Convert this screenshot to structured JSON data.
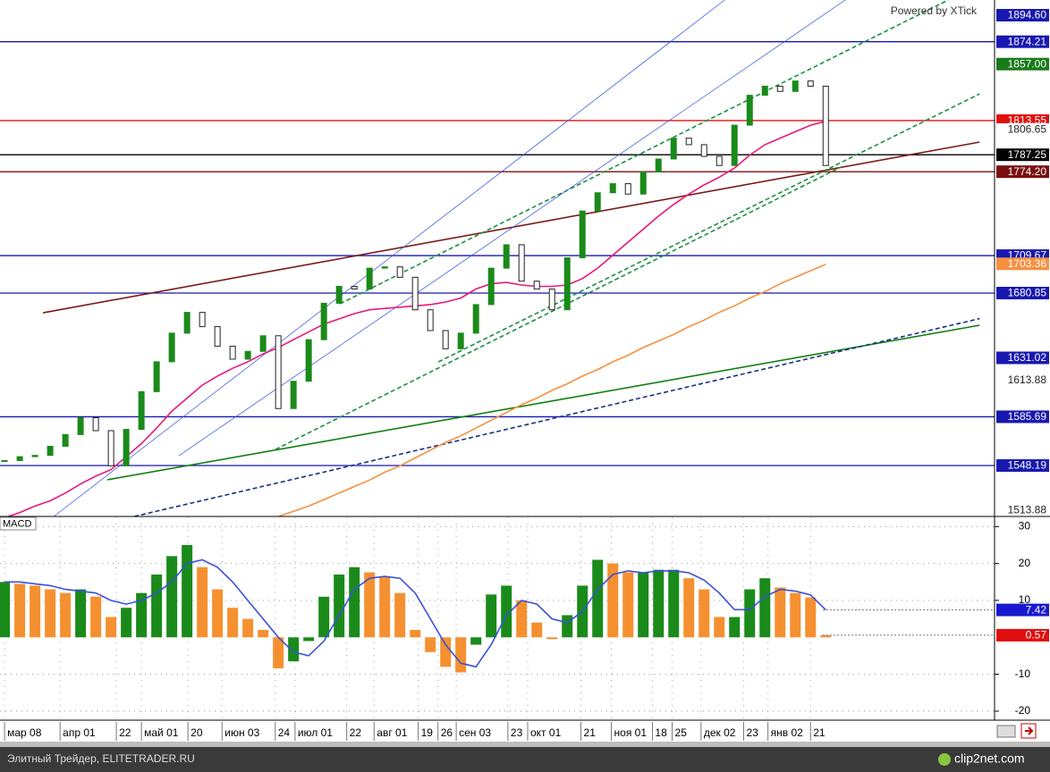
{
  "chart_data": [
    {
      "type": "candlestick",
      "watermark": "Powered by XTick",
      "xlim": [
        -0.3,
        65.1
      ],
      "ylim": [
        1509,
        1906.3
      ],
      "xticks": [
        {
          "value": 0,
          "label": "мар 08"
        },
        {
          "value": 3.65,
          "label": "апр 01"
        },
        {
          "value": 7.35,
          "label": "22"
        },
        {
          "value": 9,
          "label": "май 01"
        },
        {
          "value": 12.06,
          "label": "20"
        },
        {
          "value": 14.3,
          "label": "июн 03"
        },
        {
          "value": 17.8,
          "label": "24"
        },
        {
          "value": 19.1,
          "label": "июл 01"
        },
        {
          "value": 22.5,
          "label": "22"
        },
        {
          "value": 24.3,
          "label": "авг 01"
        },
        {
          "value": 27.2,
          "label": "19"
        },
        {
          "value": 28.5,
          "label": "26"
        },
        {
          "value": 29.7,
          "label": "сен 03"
        },
        {
          "value": 33.1,
          "label": "23"
        },
        {
          "value": 34.4,
          "label": "окт 01"
        },
        {
          "value": 37.9,
          "label": "21"
        },
        {
          "value": 39.9,
          "label": "ноя 01"
        },
        {
          "value": 42.6,
          "label": "18"
        },
        {
          "value": 43.9,
          "label": "25"
        },
        {
          "value": 45.8,
          "label": "дек 02"
        },
        {
          "value": 48.6,
          "label": "23"
        },
        {
          "value": 50.2,
          "label": "янв 02"
        },
        {
          "value": 53,
          "label": "21"
        }
      ],
      "up_color": "#1a8a1a",
      "down_color": "#ffffff",
      "close": [
        1552,
        1555,
        1556,
        1563,
        1572,
        1585,
        1575,
        1548,
        1576,
        1605,
        1628,
        1650,
        1666,
        1655,
        1640,
        1630,
        1636,
        1648,
        1592,
        1613,
        1645,
        1673,
        1686,
        1684,
        1700,
        1701,
        1693,
        1668,
        1652,
        1638,
        1650,
        1672,
        1700,
        1718,
        1690,
        1684,
        1668,
        1708,
        1744,
        1758,
        1765,
        1757,
        1774,
        1784,
        1800,
        1795,
        1786,
        1779,
        1810,
        1833,
        1840,
        1836,
        1844,
        1840,
        1779
      ],
      "series": [
        {
          "color": "#e8187c",
          "values": [
            1508,
            1512,
            1517,
            1521,
            1527,
            1534,
            1540,
            1545,
            1555,
            1565,
            1577,
            1590,
            1600,
            1610,
            1617,
            1623,
            1628,
            1634,
            1639,
            1645,
            1651,
            1657,
            1661,
            1665,
            1668,
            1669,
            1670,
            1671,
            1672,
            1674,
            1677,
            1684,
            1688,
            1689,
            1687,
            1686,
            1686,
            1687,
            1692,
            1700,
            1710,
            1720,
            1730,
            1740,
            1749,
            1757,
            1764,
            1770,
            1777,
            1787,
            1795,
            1800,
            1805,
            1810,
            1813
          ]
        },
        {
          "color": "#f59040",
          "values": [
            null,
            null,
            null,
            null,
            null,
            null,
            null,
            null,
            null,
            null,
            null,
            null,
            null,
            null,
            null,
            null,
            null,
            null,
            1509,
            1513,
            1517,
            1522,
            1527,
            1532,
            1537,
            1543,
            1548,
            1554,
            1560,
            1566,
            1571,
            1577,
            1583,
            1589,
            1595,
            1600,
            1606,
            1611,
            1617,
            1622,
            1628,
            1633,
            1639,
            1644,
            1649,
            1655,
            1660,
            1666,
            1671,
            1677,
            1682,
            1688,
            1693,
            1698,
            1703
          ]
        }
      ],
      "trend_lines": [
        {
          "color": "#7a1a1a",
          "dash": false,
          "x": [
            2.53,
            64.12
          ],
          "values": [
            1665.7,
            1797.0
          ]
        },
        {
          "color": "#108010",
          "dash": false,
          "x": [
            6.76,
            64.12
          ],
          "values": [
            1537.2,
            1656.1
          ]
        },
        {
          "color": "#1a3080",
          "dash": true,
          "x": [
            8.53,
            64.12
          ],
          "values": [
            1509.0,
            1661.2
          ]
        },
        {
          "color": "#1a9040",
          "dash": true,
          "x": [
            17.82,
            55.0
          ],
          "values": [
            1560.6,
            1777.8
          ]
        },
        {
          "color": "#1a9040",
          "dash": true,
          "x": [
            22.06,
            62.06
          ],
          "values": [
            1672.6,
            1906.3
          ]
        },
        {
          "color": "#1a9040",
          "dash": true,
          "x": [
            28.53,
            64.12
          ],
          "values": [
            1627.9,
            1834.1
          ]
        },
        {
          "color": "#3050e0",
          "dash": false,
          "x": [
            3.24,
            47.35
          ],
          "values": [
            1509.0,
            1906.3
          ]
        },
        {
          "color": "#3050e0",
          "dash": false,
          "x": [
            11.47,
            55.29
          ],
          "values": [
            1555.8,
            1906.3
          ]
        }
      ],
      "price_tags": [
        {
          "value": 1894.6,
          "label": "1894.60",
          "color": "#1818b0",
          "line": false
        },
        {
          "value": 1874.21,
          "label": "1874.21",
          "color": "#1818b0",
          "line": true
        },
        {
          "value": 1857,
          "label": "1857.00",
          "color": "#1a7a1a",
          "line": false
        },
        {
          "value": 1813.55,
          "label": "1813.55",
          "color": "#e01010",
          "line": true
        },
        {
          "value": 1806.65,
          "label": "1806.65",
          "color": "#e8e8e8",
          "line": false
        },
        {
          "value": 1787.25,
          "label": "1787.25",
          "color": "#000000",
          "line": true
        },
        {
          "value": 1774.2,
          "label": "1774.20",
          "color": "#7a1010",
          "line": true
        },
        {
          "value": 1709.67,
          "label": "1709.67",
          "color": "#1818b0",
          "line": true
        },
        {
          "value": 1703.36,
          "label": "1703.36",
          "color": "#f59040",
          "line": false
        },
        {
          "value": 1680.85,
          "label": "1680.85",
          "color": "#1818b0",
          "line": true
        },
        {
          "value": 1631.02,
          "label": "1631.02",
          "color": "#1818b0",
          "line": false
        },
        {
          "value": 1613.88,
          "label": "1613.88",
          "color": "#e8e8e8",
          "line": false
        },
        {
          "value": 1585.69,
          "label": "1585.69",
          "color": "#1818b0",
          "line": true
        },
        {
          "value": 1548.19,
          "label": "1548.19",
          "color": "#1818b0",
          "line": true
        },
        {
          "value": 1513.88,
          "label": "1513.88",
          "color": "#e8e8e8",
          "line": false
        }
      ]
    },
    {
      "type": "macd",
      "title": "MACD",
      "ylim": [
        -22.2,
        32.5
      ],
      "yticks": [
        30,
        20,
        10,
        -10,
        -20
      ],
      "grid": true,
      "up_color": "#1a8a1a",
      "down_color": "#f59030",
      "signal_color": "#3a50d8",
      "histogram": [
        15,
        14.5,
        14,
        13,
        12,
        13,
        11,
        5.5,
        8,
        12,
        17,
        22,
        25,
        19,
        13,
        8,
        5,
        2,
        -8.4,
        -6.5,
        -1,
        11,
        17,
        19,
        17.6,
        16.4,
        12,
        2,
        -4,
        -8,
        -9.5,
        -2,
        11.6,
        14,
        10,
        4,
        -0.5,
        6,
        14,
        21,
        20,
        17.6,
        17.6,
        18.3,
        18.3,
        16,
        13,
        5.5,
        5.5,
        13,
        16,
        13.5,
        12,
        10.8,
        0.57
      ],
      "signal": [
        15,
        15,
        14.5,
        14,
        13,
        12.5,
        12,
        10,
        9,
        10,
        12,
        15,
        20,
        21,
        19,
        15,
        10,
        5,
        0,
        -4,
        -5,
        -1,
        6,
        13,
        16,
        16.5,
        16,
        12,
        5,
        -2,
        -7,
        -8,
        -2,
        6,
        10,
        9,
        5,
        4,
        7,
        13,
        17,
        18,
        17.5,
        18,
        18,
        17.5,
        15.5,
        12,
        7.5,
        7.5,
        11,
        13,
        12.5,
        11.5,
        7.42
      ],
      "tags": [
        {
          "value": 7.42,
          "color": "#1818d0"
        },
        {
          "value": 0.57,
          "color": "#e01010"
        }
      ]
    }
  ],
  "footer": {
    "left": "Элитный Трейдер, ELITETRADER.RU",
    "right": "clip2net.com"
  }
}
